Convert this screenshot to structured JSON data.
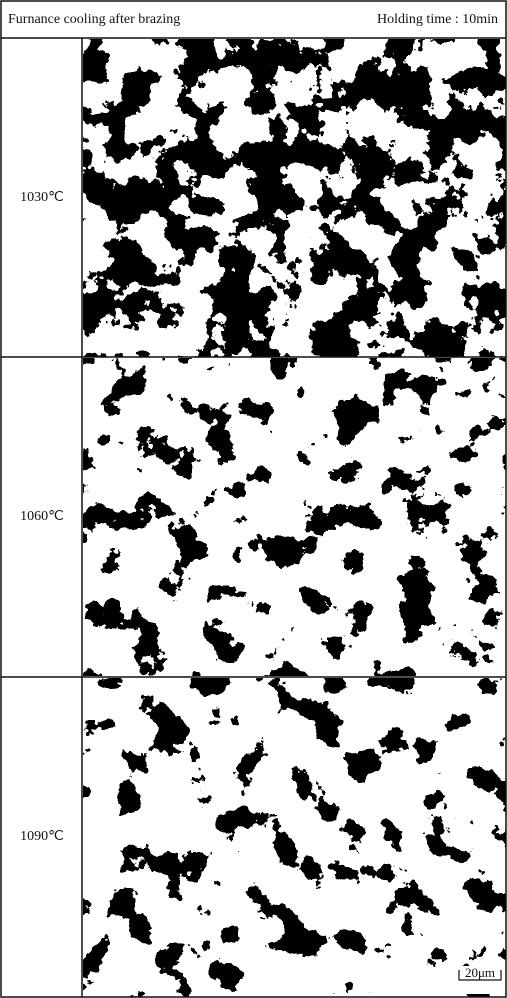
{
  "header": {
    "title": "Furnance cooling after brazing",
    "holding_time": "Holding time : 10min"
  },
  "rows": [
    {
      "label": "1030℃"
    },
    {
      "label": "1060℃"
    },
    {
      "label": "1090℃"
    }
  ],
  "scale_bar": "20μm"
}
